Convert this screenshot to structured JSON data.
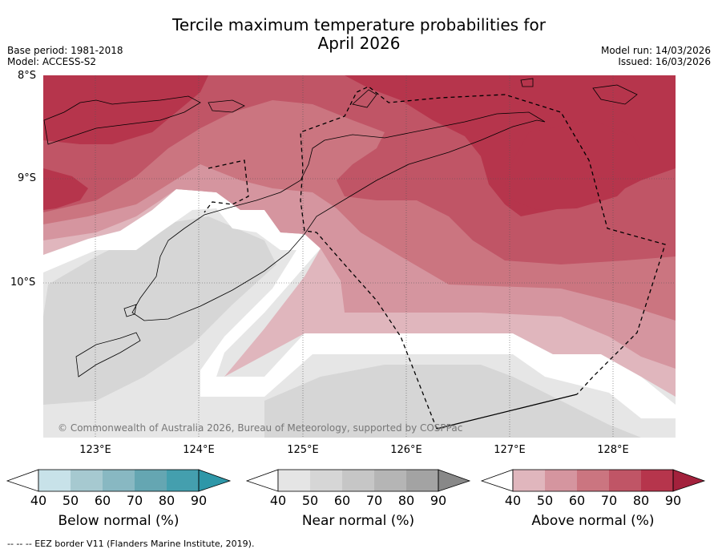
{
  "title_line1": "Tercile maximum temperature probabilities for",
  "title_line2": "April 2026",
  "base_period": "Base period: 1981-2018",
  "model": "Model: ACCESS-S2",
  "model_run": "Model run: 14/03/2026",
  "issued": "Issued: 16/03/2026",
  "lat_labels": [
    "8°S",
    "9°S",
    "10°S"
  ],
  "lon_labels": [
    "123°E",
    "124°E",
    "125°E",
    "126°E",
    "127°E",
    "128°E"
  ],
  "copyright": "© Commonwealth of Australia 2026, Bureau of Meteorology, supported by COSPPac",
  "footnote": "--  --  -- EEZ border V11 (Flanders Marine Institute, 2019).",
  "colorbars": [
    {
      "label": "Below normal (%)",
      "ticks": [
        "40",
        "50",
        "60",
        "70",
        "80",
        "90"
      ],
      "colors": [
        "#ffffff",
        "#c8e2e9",
        "#a6c9d0",
        "#88b8c2",
        "#65a6b2",
        "#449fae",
        "#2e97a8"
      ]
    },
    {
      "label": "Near normal (%)",
      "ticks": [
        "40",
        "50",
        "60",
        "70",
        "80",
        "90"
      ],
      "colors": [
        "#ffffff",
        "#e5e5e5",
        "#d6d6d6",
        "#c6c6c6",
        "#b5b5b5",
        "#a3a3a3",
        "#888888"
      ]
    },
    {
      "label": "Above normal (%)",
      "ticks": [
        "40",
        "50",
        "60",
        "70",
        "80",
        "90"
      ],
      "colors": [
        "#ffffff",
        "#e0b6bd",
        "#d5959f",
        "#cb7580",
        "#c05566",
        "#b6354c",
        "#a3213c"
      ]
    }
  ]
}
